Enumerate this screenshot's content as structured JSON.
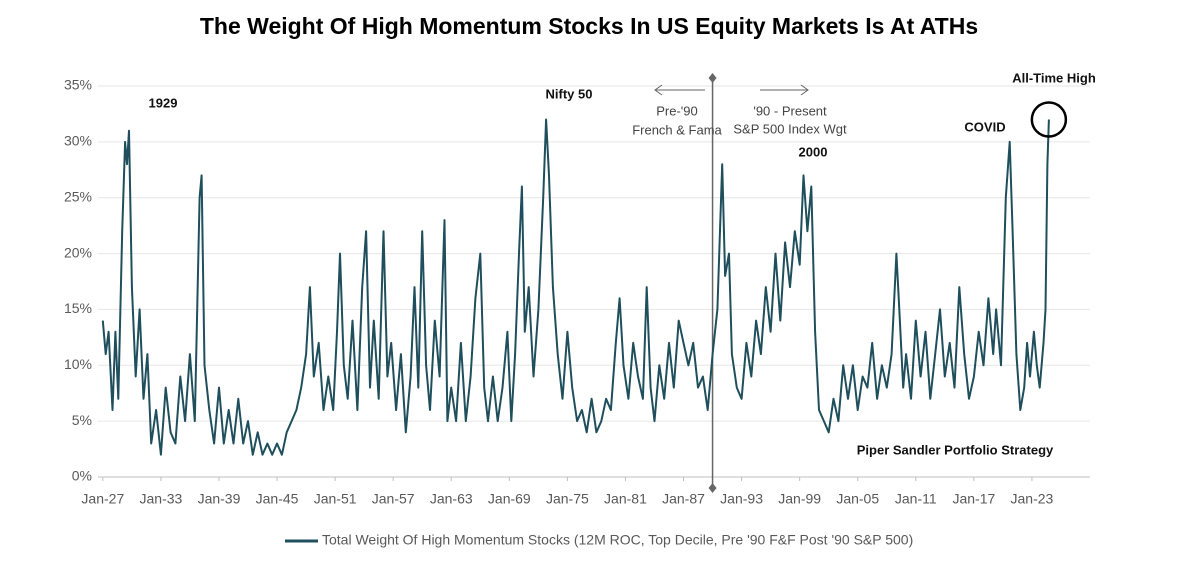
{
  "chart_data": {
    "type": "line",
    "title": "The Weight Of High Momentum Stocks In US Equity Markets Is At ATHs",
    "series": [
      {
        "name": "Total Weight Of High Momentum Stocks (12M ROC, Top Decile, Pre '90 F&F Post '90 S&P 500)",
        "color": "#1f4f5c",
        "x": [
          1927,
          1927.3,
          1927.6,
          1928,
          1928.3,
          1928.6,
          1929,
          1929.3,
          1929.5,
          1929.7,
          1930,
          1930.4,
          1930.8,
          1931.2,
          1931.6,
          1932,
          1932.5,
          1933,
          1933.5,
          1934,
          1934.5,
          1935,
          1935.5,
          1936,
          1936.5,
          1937,
          1937.2,
          1937.5,
          1938,
          1938.5,
          1939,
          1939.5,
          1940,
          1940.5,
          1941,
          1941.5,
          1942,
          1942.5,
          1943,
          1943.5,
          1944,
          1944.5,
          1945,
          1945.5,
          1946,
          1946.5,
          1947,
          1947.5,
          1948,
          1948.4,
          1948.8,
          1949.3,
          1949.8,
          1950.3,
          1950.8,
          1951.2,
          1951.5,
          1951.9,
          1952.3,
          1952.8,
          1953.3,
          1953.8,
          1954.2,
          1954.6,
          1955,
          1955.5,
          1956,
          1956.4,
          1956.8,
          1957.3,
          1957.8,
          1958.3,
          1958.8,
          1959.2,
          1959.6,
          1960,
          1960.4,
          1960.8,
          1961.3,
          1961.8,
          1962.3,
          1962.6,
          1963,
          1963.5,
          1964,
          1964.5,
          1965,
          1965.5,
          1966,
          1966.4,
          1966.8,
          1967.3,
          1967.8,
          1968.3,
          1968.8,
          1969.2,
          1969.6,
          1970,
          1970.3,
          1970.6,
          1971,
          1971.5,
          1972,
          1972.5,
          1972.8,
          1973.1,
          1973.5,
          1974,
          1974.5,
          1975,
          1975.5,
          1976,
          1976.5,
          1977,
          1977.5,
          1978,
          1978.5,
          1979,
          1979.5,
          1980,
          1980.4,
          1980.8,
          1981.3,
          1981.8,
          1982.3,
          1982.8,
          1983.2,
          1983.6,
          1984,
          1984.5,
          1985,
          1985.5,
          1986,
          1986.5,
          1987,
          1987.5,
          1988,
          1988.5,
          1989,
          1989.5,
          1990,
          1990.5,
          1991,
          1991.3,
          1991.7,
          1992,
          1992.5,
          1993,
          1993.5,
          1994,
          1994.5,
          1995,
          1995.5,
          1996,
          1996.5,
          1997,
          1997.5,
          1998,
          1998.5,
          1999,
          1999.4,
          1999.8,
          2000.2,
          2000.6,
          2001,
          2001.5,
          2002,
          2002.5,
          2003,
          2003.5,
          2004,
          2004.5,
          2005,
          2005.5,
          2006,
          2006.5,
          2007,
          2007.5,
          2008,
          2008.5,
          2009,
          2009.3,
          2009.7,
          2010,
          2010.5,
          2011,
          2011.5,
          2012,
          2012.5,
          2013,
          2013.5,
          2014,
          2014.5,
          2015,
          2015.5,
          2016,
          2016.5,
          2017,
          2017.5,
          2018,
          2018.5,
          2019,
          2019.3,
          2019.8,
          2020.3,
          2020.7,
          2021,
          2021.4,
          2021.8,
          2022.2,
          2022.5,
          2022.8,
          2023.2,
          2023.5,
          2023.8,
          2024.2,
          2024.4,
          2024.6,
          2024.75
        ],
        "values": [
          14,
          11,
          13,
          6,
          13,
          7,
          22,
          30,
          28,
          31,
          17,
          9,
          15,
          7,
          11,
          3,
          6,
          2,
          8,
          4,
          3,
          9,
          5,
          11,
          5,
          25,
          27,
          10,
          6,
          3,
          8,
          3,
          6,
          3,
          7,
          3,
          5,
          2,
          4,
          2,
          3,
          2,
          3,
          2,
          4,
          5,
          6,
          8,
          11,
          17,
          9,
          12,
          6,
          9,
          6,
          13,
          20,
          10,
          7,
          14,
          6,
          17,
          22,
          8,
          14,
          7,
          22,
          9,
          12,
          6,
          11,
          4,
          9,
          17,
          8,
          22,
          10,
          6,
          14,
          9,
          23,
          5,
          8,
          5,
          12,
          5,
          9,
          16,
          20,
          8,
          5,
          9,
          5,
          8,
          13,
          5,
          11,
          20,
          26,
          13,
          17,
          9,
          15,
          25,
          32,
          27,
          17,
          11,
          7,
          13,
          8,
          5,
          6,
          4,
          7,
          4,
          5,
          7,
          6,
          12,
          16,
          10,
          7,
          12,
          9,
          7,
          17,
          8,
          5,
          10,
          7,
          12,
          8,
          14,
          12,
          10,
          12,
          8,
          9,
          6,
          11,
          15,
          28,
          18,
          20,
          11,
          8,
          7,
          12,
          9,
          14,
          11,
          17,
          13,
          20,
          14,
          21,
          17,
          22,
          19,
          27,
          22,
          26,
          13,
          6,
          5,
          4,
          7,
          5,
          10,
          7,
          10,
          6,
          9,
          8,
          12,
          7,
          10,
          8,
          11,
          20,
          15,
          8,
          11,
          7,
          14,
          9,
          13,
          7,
          11,
          15,
          9,
          12,
          8,
          17,
          11,
          7,
          9,
          13,
          10,
          16,
          11,
          15,
          10,
          25,
          30,
          22,
          11,
          6,
          8,
          12,
          9,
          13,
          10,
          8,
          12,
          15,
          28,
          32
        ]
      }
    ],
    "xlim": [
      1926.5,
      2029
    ],
    "xticks": [
      {
        "value": 1927,
        "label": "Jan-27"
      },
      {
        "value": 1933,
        "label": "Jan-33"
      },
      {
        "value": 1939,
        "label": "Jan-39"
      },
      {
        "value": 1945,
        "label": "Jan-45"
      },
      {
        "value": 1951,
        "label": "Jan-51"
      },
      {
        "value": 1957,
        "label": "Jan-57"
      },
      {
        "value": 1963,
        "label": "Jan-63"
      },
      {
        "value": 1969,
        "label": "Jan-69"
      },
      {
        "value": 1975,
        "label": "Jan-75"
      },
      {
        "value": 1981,
        "label": "Jan-81"
      },
      {
        "value": 1987,
        "label": "Jan-87"
      },
      {
        "value": 1993,
        "label": "Jan-93"
      },
      {
        "value": 1999,
        "label": "Jan-99"
      },
      {
        "value": 2005,
        "label": "Jan-05"
      },
      {
        "value": 2011,
        "label": "Jan-11"
      },
      {
        "value": 2017,
        "label": "Jan-17"
      },
      {
        "value": 2023,
        "label": "Jan-23"
      }
    ],
    "ylim": [
      0,
      35
    ],
    "yticks": [
      {
        "value": 0,
        "label": "0%"
      },
      {
        "value": 5,
        "label": "5%"
      },
      {
        "value": 10,
        "label": "10%"
      },
      {
        "value": 15,
        "label": "15%"
      },
      {
        "value": 20,
        "label": "20%"
      },
      {
        "value": 25,
        "label": "25%"
      },
      {
        "value": 30,
        "label": "30%"
      },
      {
        "value": 35,
        "label": "35%"
      }
    ],
    "grid": true,
    "divider_x": 1990,
    "annotations": [
      "1929",
      "Nifty 50",
      "Pre-'90",
      "French & Fama",
      "'90 - Present",
      "S&P 500 Index Wgt",
      "2000",
      "COVID",
      "All-Time High",
      "Piper Sandler Portfolio Strategy"
    ]
  }
}
